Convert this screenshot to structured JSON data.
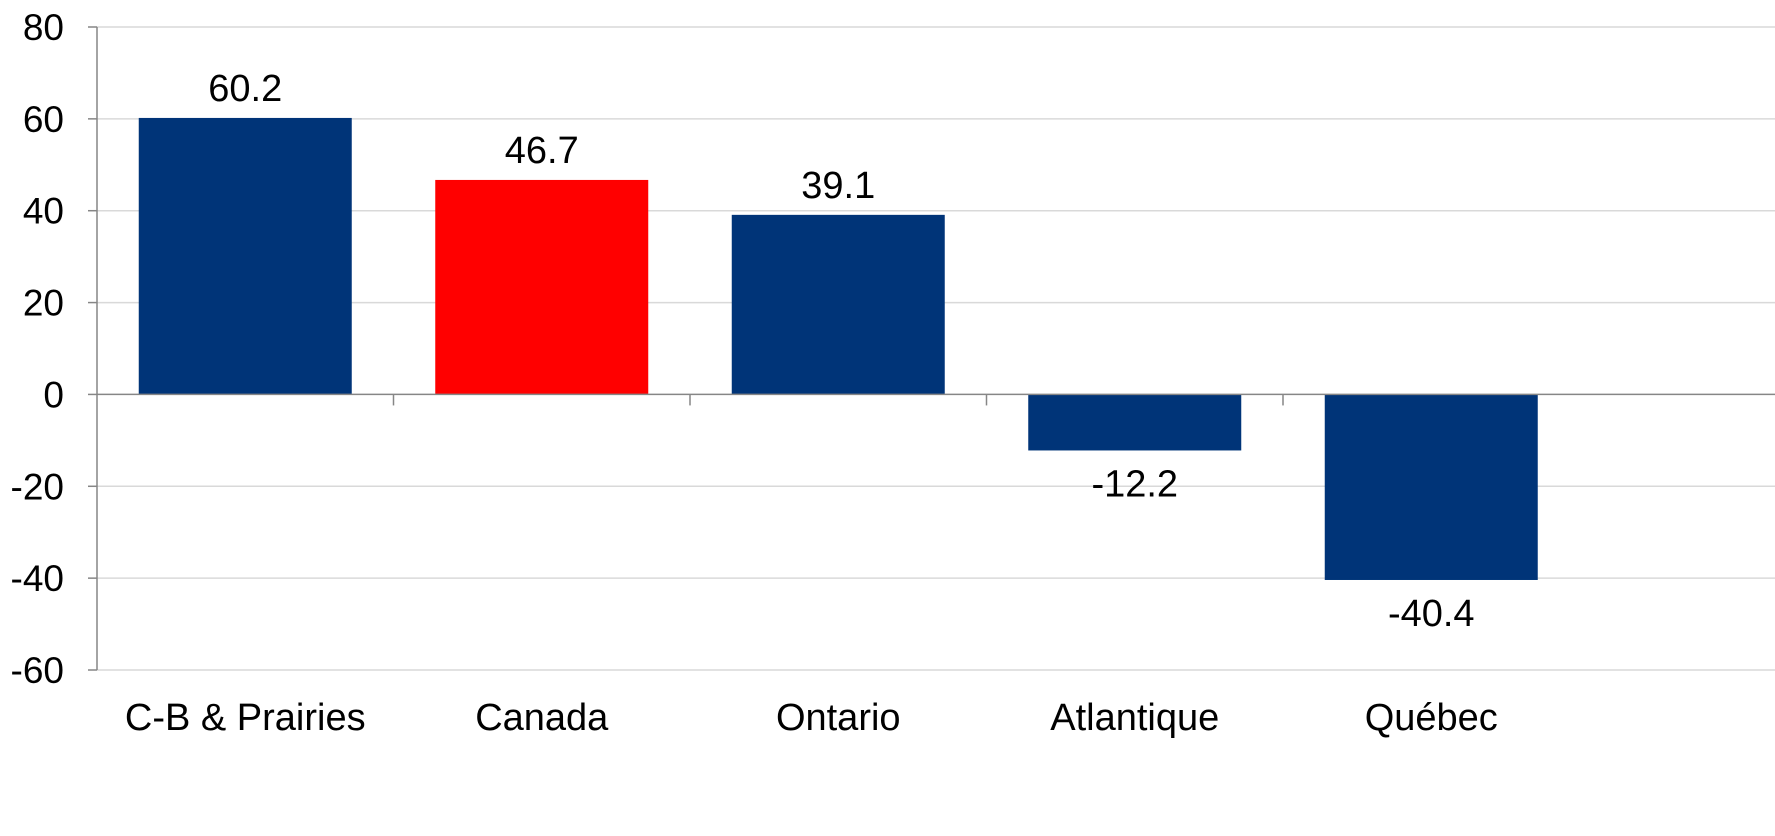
{
  "chart_data": {
    "type": "bar",
    "title": "",
    "xlabel": "",
    "ylabel": "",
    "categories": [
      "C-B & Prairies",
      "Canada",
      "Ontario",
      "Atlantique",
      "Québec"
    ],
    "values": [
      60.2,
      46.7,
      39.1,
      -12.2,
      -40.4
    ],
    "value_labels": [
      "60.2",
      "46.7",
      "39.1",
      "-12.2",
      "-40.4"
    ],
    "bar_colors": [
      "#003478",
      "#ff0000",
      "#003478",
      "#003478",
      "#003478"
    ],
    "ylim": [
      -60,
      80
    ],
    "yticks": [
      80,
      60,
      40,
      20,
      0,
      -20,
      -40,
      -60
    ],
    "ytick_labels": [
      "80",
      "60",
      "40",
      "20",
      "0",
      "-20",
      "-40",
      "-60"
    ],
    "grid": true,
    "legend": "none",
    "colors": {
      "primary": "#003478",
      "highlight": "#ff0000",
      "grid": "#d9d9d9",
      "axis": "#868686"
    }
  }
}
